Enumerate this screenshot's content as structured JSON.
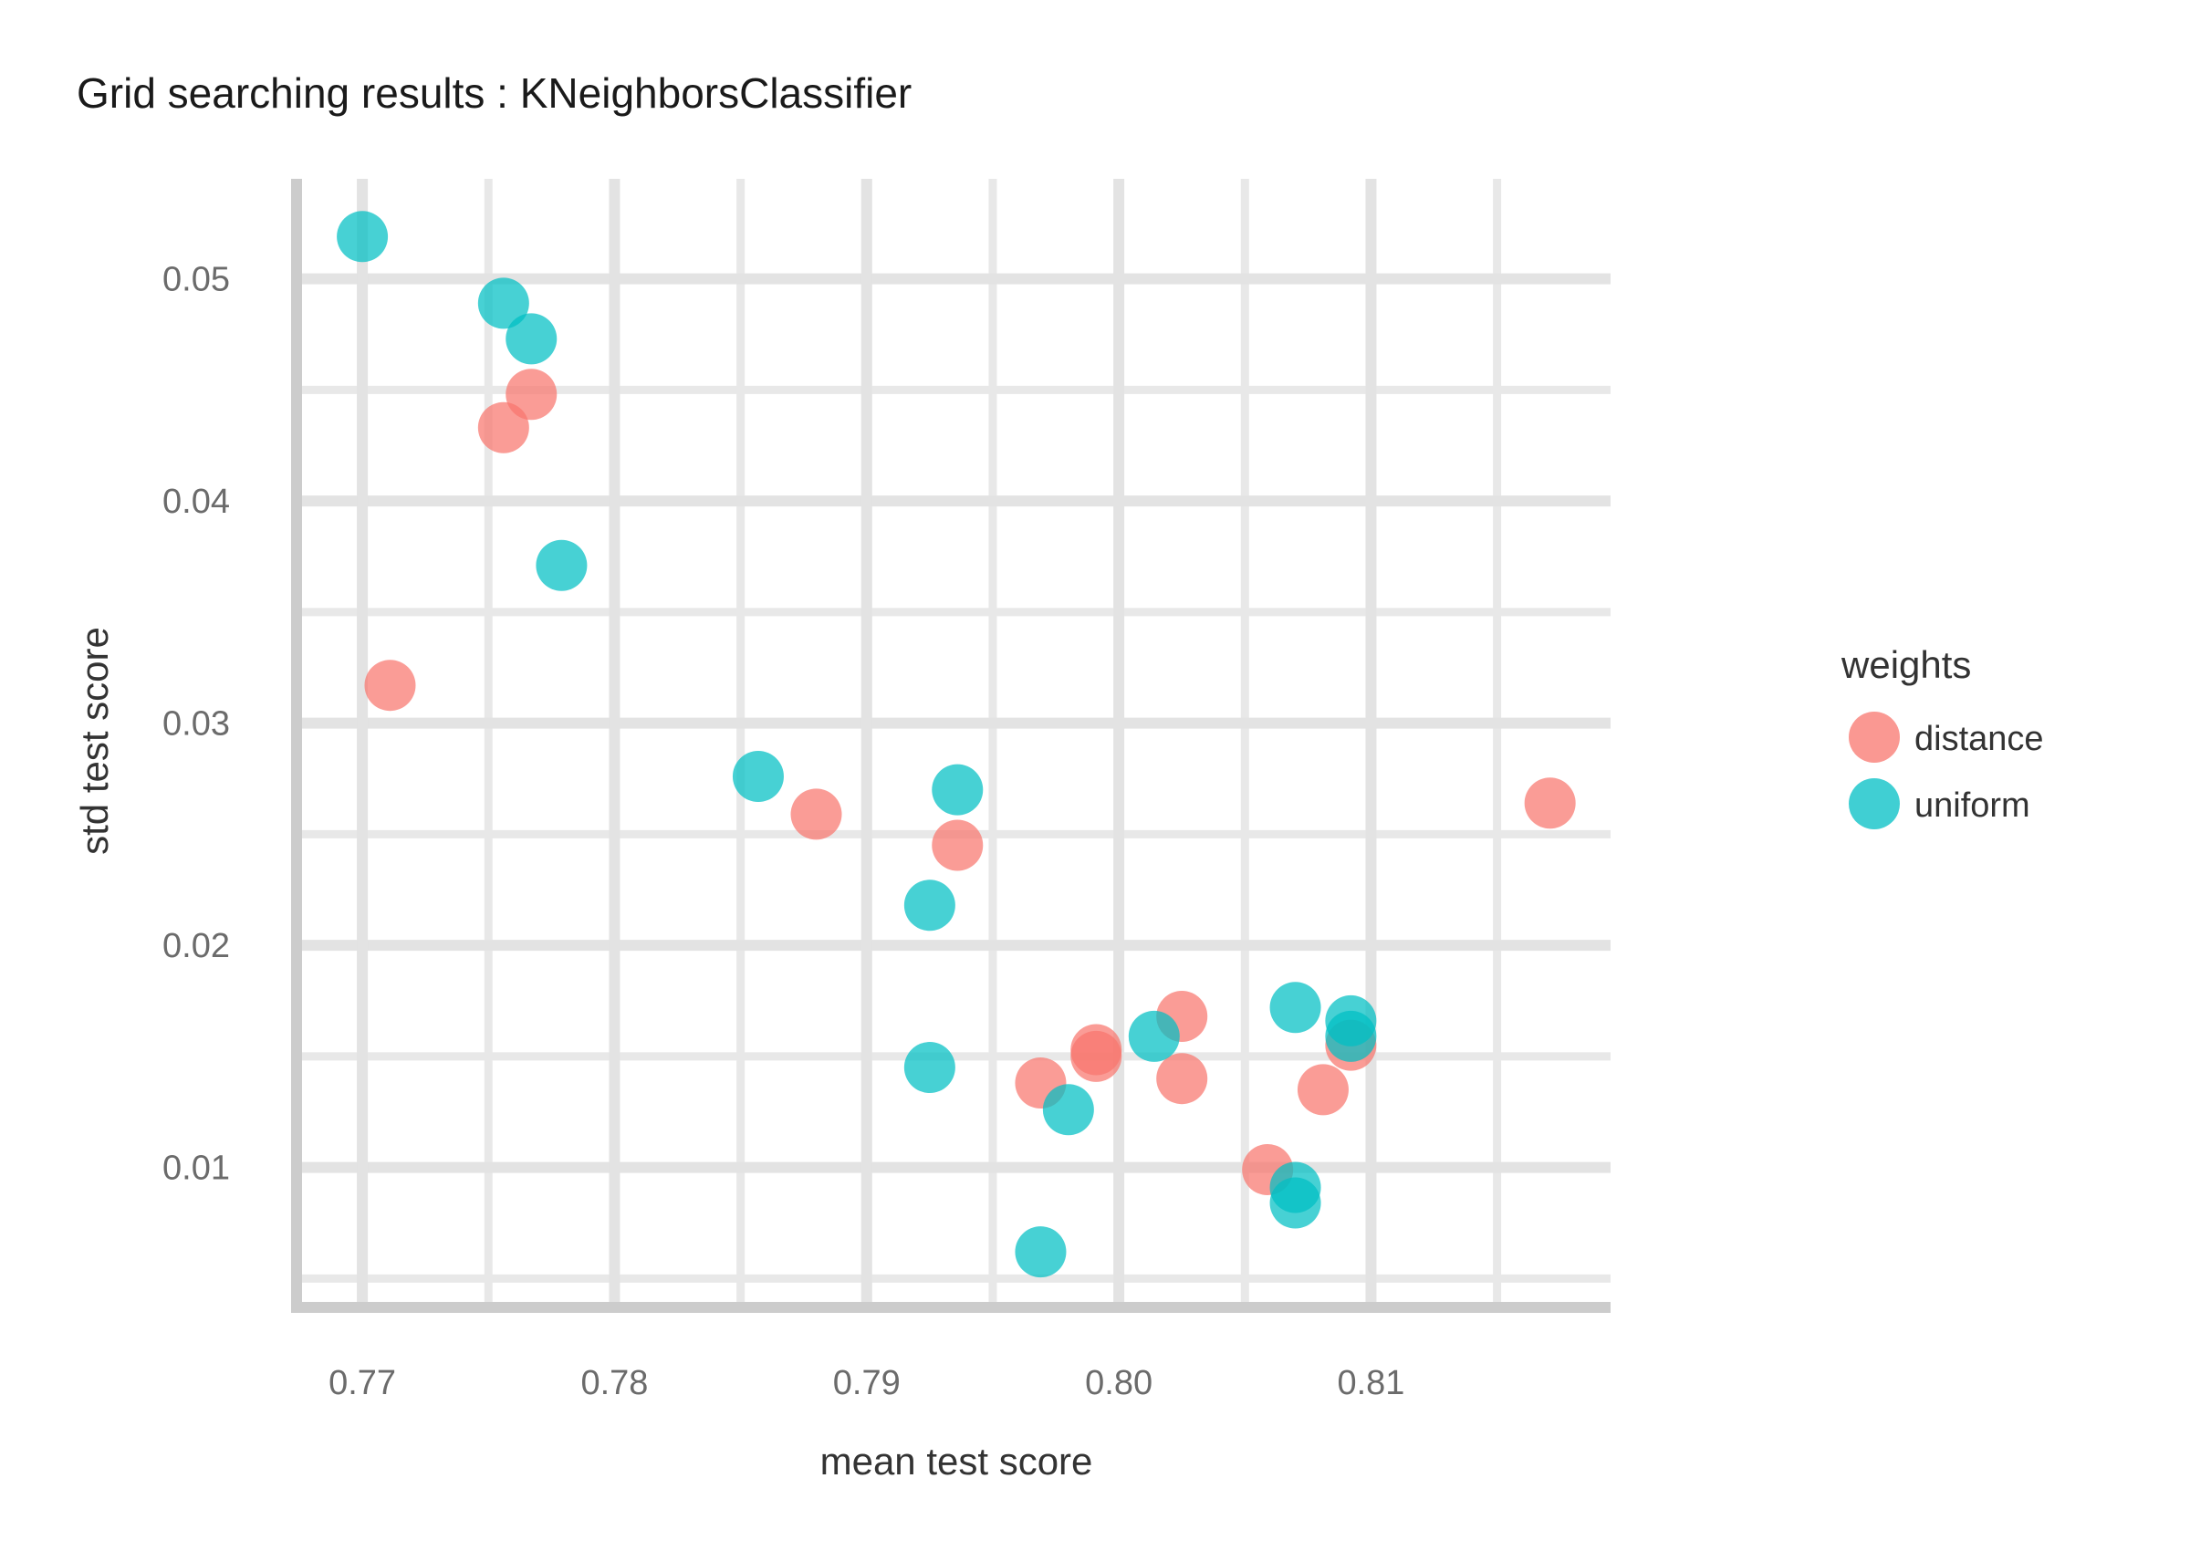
{
  "chart_data": {
    "type": "scatter",
    "title": "Grid searching results :  KNeighborsClassifier",
    "xlabel": "mean test score",
    "ylabel": "std test score",
    "xlim": [
      0.7675,
      0.8195
    ],
    "ylim": [
      0.0037,
      0.0545
    ],
    "x_ticks": [
      0.77,
      0.78,
      0.79,
      0.8,
      0.81
    ],
    "x_tick_labels": [
      "0.77",
      "0.78",
      "0.79",
      "0.80",
      "0.81"
    ],
    "y_ticks": [
      0.01,
      0.02,
      0.03,
      0.04,
      0.05
    ],
    "y_tick_labels": [
      "0.01",
      "0.02",
      "0.03",
      "0.04",
      "0.05"
    ],
    "grid": true,
    "legend": {
      "title": "weights",
      "position": "right"
    },
    "series": [
      {
        "name": "distance",
        "color": "#F8766D",
        "points": [
          [
            0.7711,
            0.0317
          ],
          [
            0.7756,
            0.0433
          ],
          [
            0.7767,
            0.0448
          ],
          [
            0.788,
            0.0259
          ],
          [
            0.7936,
            0.0245
          ],
          [
            0.7969,
            0.0138
          ],
          [
            0.7991,
            0.0153
          ],
          [
            0.7991,
            0.015
          ],
          [
            0.8025,
            0.0168
          ],
          [
            0.8025,
            0.014
          ],
          [
            0.8059,
            0.0099
          ],
          [
            0.8081,
            0.0135
          ],
          [
            0.8092,
            0.0155
          ],
          [
            0.8171,
            0.0264
          ]
        ]
      },
      {
        "name": "uniform",
        "color": "#00BFC4",
        "points": [
          [
            0.77,
            0.0519
          ],
          [
            0.7756,
            0.0489
          ],
          [
            0.7767,
            0.0473
          ],
          [
            0.7779,
            0.0371
          ],
          [
            0.7857,
            0.0276
          ],
          [
            0.7925,
            0.0218
          ],
          [
            0.7936,
            0.027
          ],
          [
            0.7925,
            0.0145
          ],
          [
            0.7969,
            0.0062
          ],
          [
            0.798,
            0.0126
          ],
          [
            0.8014,
            0.0159
          ],
          [
            0.807,
            0.0172
          ],
          [
            0.807,
            0.0091
          ],
          [
            0.807,
            0.0084
          ],
          [
            0.8092,
            0.0166
          ],
          [
            0.8092,
            0.0159
          ]
        ]
      }
    ]
  }
}
